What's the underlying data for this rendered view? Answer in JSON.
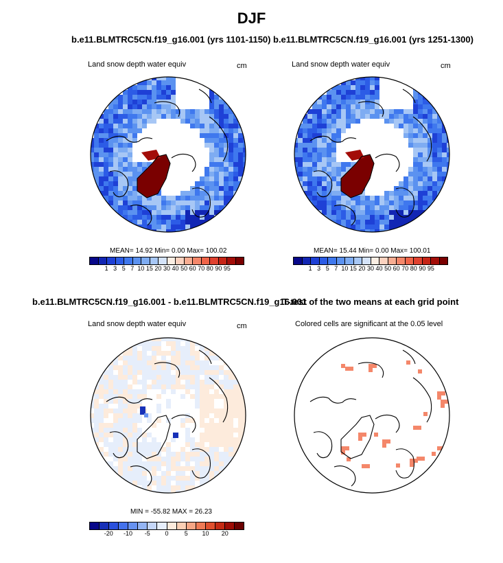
{
  "title": "DJF",
  "panels": [
    {
      "title": "b.e11.BLMTRC5CN.f19_g16.001 (yrs 1101-1150)",
      "left_label": "Land snow depth water equiv",
      "right_label": "cm",
      "stats": "MEAN=  14.92  Min=    0.00  Max= 100.02"
    },
    {
      "title": "b.e11.BLMTRC5CN.f19_g16.001 (yrs 1251-1300)",
      "left_label": "Land snow depth water equiv",
      "right_label": "cm",
      "stats": "MEAN=  15.44  Min=    0.00  Max= 100.01"
    },
    {
      "title": "b.e11.BLMTRC5CN.f19_g16.001 - b.e11.BLMTRC5CN.f19_g16.001",
      "left_label": "Land snow depth water equiv",
      "right_label": "cm",
      "stats": "MIN = -55.82 MAX =  26.23"
    },
    {
      "title": "T-test of the two means at each grid point",
      "left_label": "Colored cells are significant at the 0.05 level",
      "right_label": "",
      "stats": ""
    }
  ],
  "colorbar_abs": {
    "colors": [
      "#08088a",
      "#1226b4",
      "#1e40d6",
      "#2c5ce6",
      "#3f78ee",
      "#5b92f0",
      "#7eacf2",
      "#a7c7f5",
      "#d4e3f9",
      "#fbeee3",
      "#fbd2bf",
      "#f8ad92",
      "#f4876a",
      "#ef6448",
      "#e04230",
      "#c62416",
      "#a30d08",
      "#7a0000"
    ],
    "ticks": [
      "1",
      "3",
      "5",
      "7",
      "10",
      "15",
      "20",
      "30",
      "40",
      "50",
      "60",
      "70",
      "80",
      "90",
      "95"
    ]
  },
  "colorbar_diff": {
    "colors": [
      "#08088a",
      "#1630b8",
      "#2a50dc",
      "#4472ec",
      "#6792f0",
      "#94b5f4",
      "#c4d6f8",
      "#e6eefb",
      "#fdebdc",
      "#fbcfb4",
      "#f6a685",
      "#ef7a55",
      "#e0502e",
      "#c42a13",
      "#9d0c05",
      "#6b0000"
    ],
    "ticks": [
      "-20",
      "-10",
      "-5",
      "0",
      "5",
      "10",
      "20"
    ]
  }
}
